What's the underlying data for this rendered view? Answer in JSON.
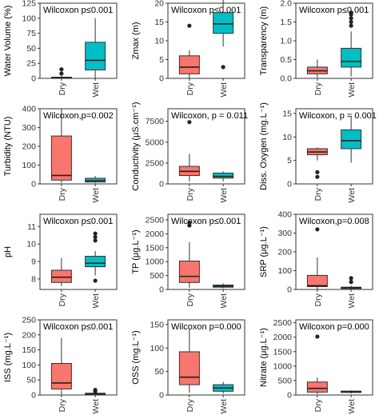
{
  "colors": {
    "dry": "#F8766D",
    "wet": "#00BFC4"
  },
  "chart_data": [
    {
      "type": "boxplot",
      "annotation": "Wilcoxon p≤0.001",
      "ylabel": "Water Volume (%)",
      "ylim": [
        0,
        125
      ],
      "yticks": [
        0,
        25,
        50,
        75,
        100,
        125
      ],
      "categories": [
        "Dry",
        "Wet"
      ],
      "boxes": [
        {
          "group": "Dry",
          "min": 0,
          "q1": 0,
          "median": 1,
          "q3": 2,
          "max": 4,
          "outliers": [
            8,
            15
          ]
        },
        {
          "group": "Wet",
          "min": 0,
          "q1": 14,
          "median": 30,
          "q3": 60,
          "max": 100,
          "outliers": []
        }
      ]
    },
    {
      "type": "boxplot",
      "annotation": "Wilcoxon p≤0.001",
      "ylabel": "Zmax (m)",
      "ylim": [
        0,
        20
      ],
      "yticks": [
        0,
        5,
        10,
        15,
        20
      ],
      "categories": [
        "Dry",
        "Wet"
      ],
      "boxes": [
        {
          "group": "Dry",
          "min": 0,
          "q1": 1.2,
          "median": 3,
          "q3": 6,
          "max": 7.5,
          "outliers": [
            14
          ]
        },
        {
          "group": "Wet",
          "min": 8.5,
          "q1": 12,
          "median": 14.5,
          "q3": 17.5,
          "max": 21,
          "outliers": [
            3
          ]
        }
      ]
    },
    {
      "type": "boxplot",
      "annotation": "Wilcoxon p≤0.001",
      "ylabel": "Transparency (m)",
      "ylim": [
        0,
        2
      ],
      "yticks": [
        0.0,
        0.5,
        1.0,
        1.5,
        2.0
      ],
      "categories": [
        "Dry",
        "Wet"
      ],
      "boxes": [
        {
          "group": "Dry",
          "min": 0.02,
          "q1": 0.12,
          "median": 0.2,
          "q3": 0.3,
          "max": 0.5,
          "outliers": []
        },
        {
          "group": "Wet",
          "min": 0.05,
          "q1": 0.3,
          "median": 0.45,
          "q3": 0.8,
          "max": 1.25,
          "outliers": [
            1.4,
            1.5,
            1.6,
            1.7,
            1.75
          ]
        }
      ]
    },
    {
      "type": "boxplot",
      "annotation": "Wilcoxon,p=0.002",
      "ylabel": "Turbidity (NTU)",
      "ylim": [
        0,
        400
      ],
      "yticks": [
        0,
        100,
        200,
        300,
        400
      ],
      "categories": [
        "Dry",
        "Wet"
      ],
      "boxes": [
        {
          "group": "Dry",
          "min": 5,
          "q1": 20,
          "median": 45,
          "q3": 255,
          "max": 400,
          "outliers": []
        },
        {
          "group": "Wet",
          "min": 5,
          "q1": 10,
          "median": 17,
          "q3": 30,
          "max": 42,
          "outliers": []
        }
      ]
    },
    {
      "type": "boxplot",
      "annotation": "Wilcoxon, p = 0.011",
      "ylabel": "Conductivity (μS.cm⁻¹)",
      "ylim": [
        0,
        9000
      ],
      "yticks": [
        0,
        2500,
        5000,
        7500
      ],
      "categories": [
        "Dry",
        "Wet"
      ],
      "boxes": [
        {
          "group": "Dry",
          "min": 300,
          "q1": 1000,
          "median": 1500,
          "q3": 2100,
          "max": 3600,
          "outliers": [
            7400
          ]
        },
        {
          "group": "Wet",
          "min": 300,
          "q1": 700,
          "median": 900,
          "q3": 1300,
          "max": 1500,
          "outliers": []
        }
      ]
    },
    {
      "type": "boxplot",
      "annotation": "Wilcoxon, p = 0.001",
      "ylabel": "Diss. Oxygen (mg.L⁻¹)",
      "ylim": [
        0,
        16
      ],
      "yticks": [
        0,
        5,
        10,
        15
      ],
      "categories": [
        "Dry",
        "Wet"
      ],
      "boxes": [
        {
          "group": "Dry",
          "min": 5,
          "q1": 6.2,
          "median": 6.8,
          "q3": 7.5,
          "max": 7.8,
          "outliers": [
            1.5,
            2.5
          ]
        },
        {
          "group": "Wet",
          "min": 4.5,
          "q1": 7.5,
          "median": 9.2,
          "q3": 11.5,
          "max": 14.5,
          "outliers": []
        }
      ]
    },
    {
      "type": "boxplot",
      "annotation": "Wilcoxon p≤0.001",
      "ylabel": "pH",
      "ylim": [
        7.4,
        11.7
      ],
      "yticks": [
        8,
        9,
        10,
        11
      ],
      "categories": [
        "Dry",
        "Wet"
      ],
      "boxes": [
        {
          "group": "Dry",
          "min": 7.6,
          "q1": 7.8,
          "median": 8.1,
          "q3": 8.5,
          "max": 9.2,
          "outliers": []
        },
        {
          "group": "Wet",
          "min": 8.2,
          "q1": 8.7,
          "median": 8.9,
          "q3": 9.3,
          "max": 9.6,
          "outliers": [
            7.9,
            10.2,
            10.4,
            10.6
          ]
        }
      ]
    },
    {
      "type": "boxplot",
      "annotation": "Wilcoxon p≤0.001",
      "ylabel": "TP (μg.L⁻¹)",
      "ylim": [
        0,
        2700
      ],
      "yticks": [
        0,
        500,
        1000,
        1500,
        2000,
        2500
      ],
      "categories": [
        "Dry",
        "Wet"
      ],
      "boxes": [
        {
          "group": "Dry",
          "min": 60,
          "q1": 250,
          "median": 470,
          "q3": 1020,
          "max": 1700,
          "outliers": [
            2300,
            2400
          ]
        },
        {
          "group": "Wet",
          "min": 40,
          "q1": 80,
          "median": 120,
          "q3": 160,
          "max": 220,
          "outliers": []
        }
      ]
    },
    {
      "type": "boxplot",
      "annotation": "Wilcoxon,p=0.008",
      "ylabel": "SRP (μg.L⁻¹)",
      "ylim": [
        0,
        400
      ],
      "yticks": [
        0,
        100,
        200,
        300,
        400
      ],
      "categories": [
        "Dry",
        "Wet"
      ],
      "boxes": [
        {
          "group": "Dry",
          "min": 2,
          "q1": 15,
          "median": 20,
          "q3": 75,
          "max": 170,
          "outliers": [
            320
          ]
        },
        {
          "group": "Wet",
          "min": 2,
          "q1": 5,
          "median": 10,
          "q3": 12,
          "max": 20,
          "outliers": [
            40,
            60
          ]
        }
      ]
    },
    {
      "type": "boxplot",
      "annotation": "Wilcoxon p≤0.001",
      "ylabel": "ISS (mg.L⁻¹)",
      "ylim": [
        0,
        250
      ],
      "yticks": [
        0,
        50,
        100,
        150,
        200,
        250
      ],
      "categories": [
        "Dry",
        "Wet"
      ],
      "boxes": [
        {
          "group": "Dry",
          "min": 2,
          "q1": 20,
          "median": 40,
          "q3": 105,
          "max": 190,
          "outliers": []
        },
        {
          "group": "Wet",
          "min": 1,
          "q1": 3,
          "median": 4,
          "q3": 6,
          "max": 9,
          "outliers": [
            12,
            17
          ]
        }
      ]
    },
    {
      "type": "boxplot",
      "annotation": "Wilcoxon p=0.000",
      "ylabel": "OSS (mg.L⁻¹)",
      "ylim": [
        0,
        160
      ],
      "yticks": [
        0,
        50,
        100,
        150
      ],
      "categories": [
        "Dry",
        "Wet"
      ],
      "boxes": [
        {
          "group": "Dry",
          "min": 5,
          "q1": 22,
          "median": 38,
          "q3": 92,
          "max": 140,
          "outliers": []
        },
        {
          "group": "Wet",
          "min": 3,
          "q1": 8,
          "median": 15,
          "q3": 22,
          "max": 28,
          "outliers": []
        }
      ]
    },
    {
      "type": "boxplot",
      "annotation": "Wilcoxon p=0.000",
      "ylabel": "Nitrate (μg.L⁻¹)",
      "ylim": [
        0,
        2600
      ],
      "yticks": [
        0,
        500,
        1000,
        1500,
        2000,
        2500
      ],
      "categories": [
        "Dry",
        "Wet"
      ],
      "boxes": [
        {
          "group": "Dry",
          "min": 30,
          "q1": 100,
          "median": 230,
          "q3": 450,
          "max": 600,
          "outliers": [
            2020
          ]
        },
        {
          "group": "Wet",
          "min": 50,
          "q1": 90,
          "median": 110,
          "q3": 135,
          "max": 160,
          "outliers": []
        }
      ]
    }
  ]
}
